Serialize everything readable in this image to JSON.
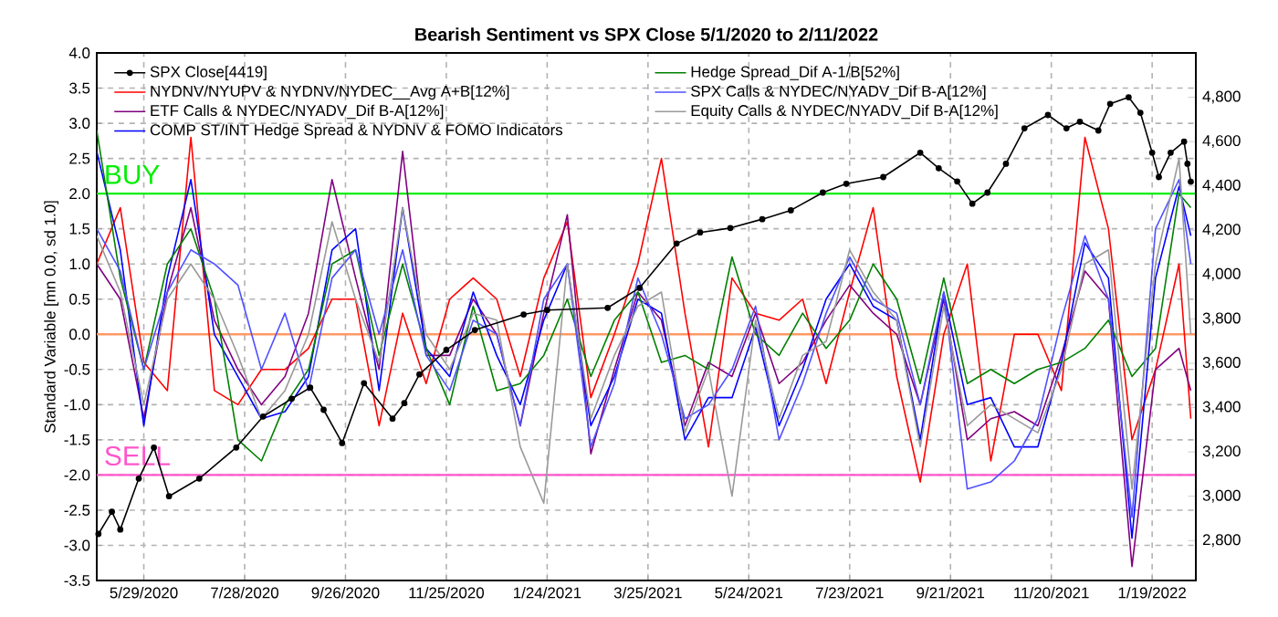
{
  "chart_data": {
    "type": "line",
    "title": "Bearish Sentiment vs SPX Close 5/1/2020 to 2/11/2022",
    "ylabel": "Standard Variable [mn 0.0, sd 1.0]",
    "x": [
      "2020-05-01",
      "2020-05-15",
      "2020-05-29",
      "2020-06-12",
      "2020-06-26",
      "2020-07-10",
      "2020-07-24",
      "2020-08-07",
      "2020-08-21",
      "2020-09-04",
      "2020-09-18",
      "2020-10-02",
      "2020-10-16",
      "2020-10-30",
      "2020-11-13",
      "2020-11-27",
      "2020-12-11",
      "2020-12-25",
      "2021-01-08",
      "2021-01-22",
      "2021-02-05",
      "2021-02-19",
      "2021-03-05",
      "2021-03-19",
      "2021-04-02",
      "2021-04-16",
      "2021-04-30",
      "2021-05-14",
      "2021-05-28",
      "2021-06-11",
      "2021-06-25",
      "2021-07-09",
      "2021-07-23",
      "2021-08-06",
      "2021-08-20",
      "2021-09-03",
      "2021-09-17",
      "2021-10-01",
      "2021-10-15",
      "2021-10-29",
      "2021-11-12",
      "2021-11-26",
      "2021-12-10",
      "2021-12-24",
      "2022-01-07",
      "2022-01-21",
      "2022-02-04",
      "2022-02-11"
    ],
    "xlim": [
      "2020-05-01",
      "2022-02-14"
    ],
    "xticks": [
      {
        "value": "2020-05-29",
        "label": "5/29/2020"
      },
      {
        "value": "2020-07-28",
        "label": "7/28/2020"
      },
      {
        "value": "2020-09-26",
        "label": "9/26/2020"
      },
      {
        "value": "2020-11-25",
        "label": "11/25/2020"
      },
      {
        "value": "2021-01-24",
        "label": "1/24/2021"
      },
      {
        "value": "2021-03-25",
        "label": "3/25/2021"
      },
      {
        "value": "2021-05-24",
        "label": "5/24/2021"
      },
      {
        "value": "2021-07-23",
        "label": "7/23/2021"
      },
      {
        "value": "2021-09-21",
        "label": "9/21/2021"
      },
      {
        "value": "2021-11-20",
        "label": "11/20/2021"
      },
      {
        "value": "2022-01-19",
        "label": "1/19/2022"
      }
    ],
    "ylim": [
      -3.5,
      4.0
    ],
    "yticks": [
      {
        "value": -3.5,
        "label": "-3.5"
      },
      {
        "value": -3,
        "label": "-3.0"
      },
      {
        "value": -2.5,
        "label": "-2.5"
      },
      {
        "value": -2,
        "label": "-2.0"
      },
      {
        "value": -1.5,
        "label": "-1.5"
      },
      {
        "value": -1,
        "label": "-1.0"
      },
      {
        "value": -0.5,
        "label": "-0.5"
      },
      {
        "value": 0,
        "label": "0.0"
      },
      {
        "value": 0.5,
        "label": "0.5"
      },
      {
        "value": 1,
        "label": "1.0"
      },
      {
        "value": 1.5,
        "label": "1.5"
      },
      {
        "value": 2,
        "label": "2.0"
      },
      {
        "value": 2.5,
        "label": "2.5"
      },
      {
        "value": 3,
        "label": "3.0"
      },
      {
        "value": 3.5,
        "label": "3.5"
      },
      {
        "value": 4,
        "label": "4.0"
      }
    ],
    "y2lim": [
      2620,
      5000
    ],
    "y2ticks": [
      {
        "value": 2800,
        "label": "2,800"
      },
      {
        "value": 3000,
        "label": "3,000"
      },
      {
        "value": 3200,
        "label": "3,200"
      },
      {
        "value": 3400,
        "label": "3,400"
      },
      {
        "value": 3600,
        "label": "3,600"
      },
      {
        "value": 3800,
        "label": "3,800"
      },
      {
        "value": 4000,
        "label": "4,000"
      },
      {
        "value": 4200,
        "label": "4,200"
      },
      {
        "value": 4400,
        "label": "4,400"
      },
      {
        "value": 4600,
        "label": "4,600"
      },
      {
        "value": 4800,
        "label": "4,800"
      }
    ],
    "grid": true,
    "legend": "top left",
    "ref_lines": [
      {
        "axis": "y",
        "value": 2.0,
        "label": "BUY",
        "color": "#00ee00"
      },
      {
        "axis": "y",
        "value": -2.0,
        "label": "SELL",
        "color": "#ff55cc"
      },
      {
        "axis": "y",
        "value": 0.0,
        "color": "#ff9966"
      }
    ],
    "series": [
      {
        "name": "SPX Close[4419]",
        "color": "#000000",
        "axis": "y2",
        "marker": "circle",
        "x": [
          "2020-05-02",
          "2020-05-10",
          "2020-05-15",
          "2020-05-26",
          "2020-06-04",
          "2020-06-13",
          "2020-07-01",
          "2020-07-23",
          "2020-08-08",
          "2020-08-25",
          "2020-09-05",
          "2020-09-13",
          "2020-09-24",
          "2020-10-07",
          "2020-10-24",
          "2020-10-31",
          "2020-11-09",
          "2020-11-25",
          "2020-12-12",
          "2021-01-10",
          "2021-01-24",
          "2021-03-01",
          "2021-03-20",
          "2021-04-11",
          "2021-04-25",
          "2021-05-13",
          "2021-06-01",
          "2021-06-18",
          "2021-07-07",
          "2021-07-21",
          "2021-08-12",
          "2021-09-03",
          "2021-09-14",
          "2021-09-25",
          "2021-10-04",
          "2021-10-13",
          "2021-10-24",
          "2021-11-04",
          "2021-11-18",
          "2021-11-29",
          "2021-12-07",
          "2021-12-18",
          "2021-12-25",
          "2022-01-05",
          "2022-01-12",
          "2022-01-19",
          "2022-01-23",
          "2022-01-30",
          "2022-02-07",
          "2022-02-09",
          "2022-02-11"
        ],
        "values": [
          2830,
          2930,
          2850,
          3080,
          3220,
          3000,
          3080,
          3220,
          3360,
          3440,
          3490,
          3390,
          3240,
          3510,
          3350,
          3420,
          3550,
          3660,
          3750,
          3820,
          3840,
          3850,
          3940,
          4140,
          4190,
          4210,
          4250,
          4290,
          4370,
          4410,
          4440,
          4550,
          4480,
          4420,
          4320,
          4370,
          4500,
          4660,
          4720,
          4660,
          4690,
          4650,
          4770,
          4800,
          4730,
          4550,
          4440,
          4550,
          4600,
          4500,
          4419
        ]
      },
      {
        "name": "NYDNV/NYUPV & NYDNV/NYDEC__Avg A+B[12%]",
        "color": "#ff0000",
        "values": [
          1.0,
          1.8,
          -0.4,
          -0.8,
          2.8,
          -0.8,
          -1.0,
          -0.5,
          -0.5,
          -0.2,
          0.5,
          0.5,
          -1.3,
          0.3,
          -0.7,
          0.5,
          0.8,
          0.5,
          -0.6,
          0.8,
          1.6,
          -0.9,
          0.0,
          1.0,
          2.5,
          0.3,
          -1.6,
          0.8,
          0.3,
          0.2,
          0.5,
          -0.7,
          0.6,
          1.8,
          -0.6,
          -2.1,
          0.0,
          1.0,
          -1.8,
          0.0,
          0.0,
          -0.8,
          2.8,
          1.5,
          -1.5,
          -0.5,
          1.0,
          -1.2
        ]
      },
      {
        "name": "ETF Calls & NYDEC/NYADV_Dif B-A[12%]",
        "color": "#800080",
        "values": [
          1.0,
          0.5,
          -1.2,
          0.6,
          1.8,
          0.2,
          -0.5,
          -1.0,
          -0.6,
          0.3,
          2.2,
          0.8,
          -0.5,
          2.6,
          -0.3,
          -0.3,
          0.5,
          0.0,
          -1.3,
          0.3,
          1.7,
          -1.7,
          -0.5,
          0.6,
          0.2,
          -1.3,
          -0.4,
          -0.6,
          0.3,
          -0.7,
          -0.4,
          0.2,
          0.7,
          0.3,
          0.0,
          -1.0,
          0.5,
          -1.5,
          -1.2,
          -1.1,
          -1.3,
          -0.3,
          0.9,
          0.5,
          -3.3,
          -0.5,
          -0.2,
          -0.8
        ]
      },
      {
        "name": "COMP ST/INT Hedge Spread & NYDNV & FOMO Indicators",
        "color": "#0000ff",
        "values": [
          2.6,
          1.2,
          -1.3,
          0.8,
          2.2,
          0.0,
          -0.6,
          -1.2,
          -1.1,
          -0.6,
          1.2,
          1.5,
          -0.8,
          1.8,
          -0.2,
          -0.6,
          0.6,
          -0.3,
          -1.0,
          0.2,
          1.0,
          -1.3,
          -0.6,
          0.5,
          0.3,
          -1.5,
          -0.9,
          -0.9,
          0.1,
          -1.3,
          -0.5,
          0.5,
          1.0,
          0.4,
          0.2,
          -1.5,
          0.6,
          -1.0,
          -0.9,
          -1.6,
          -1.6,
          -0.4,
          1.3,
          0.8,
          -2.9,
          0.8,
          2.1,
          1.4
        ]
      },
      {
        "name": "Hedge Spread_Dif A-1/B[52%]",
        "color": "#008000",
        "values": [
          2.9,
          0.8,
          -0.5,
          1.0,
          1.5,
          0.5,
          -1.5,
          -1.8,
          -1.0,
          -0.5,
          1.0,
          1.2,
          -0.3,
          1.0,
          -0.2,
          -1.0,
          0.4,
          -0.8,
          -0.7,
          -0.3,
          0.5,
          -0.6,
          0.2,
          0.6,
          -0.4,
          -0.3,
          -0.5,
          1.1,
          0.0,
          -0.3,
          0.3,
          -0.2,
          0.2,
          1.0,
          0.5,
          -0.7,
          0.8,
          -0.7,
          -0.5,
          -0.7,
          -0.5,
          -0.4,
          -0.2,
          0.2,
          -0.6,
          -0.2,
          2.0,
          1.8
        ]
      },
      {
        "name": "SPX Calls & NYDEC/NYADV_Dif B-A[12%]",
        "color": "#5050ff",
        "values": [
          1.5,
          0.9,
          -0.5,
          0.6,
          1.2,
          1.0,
          0.7,
          -0.5,
          0.3,
          -0.8,
          0.8,
          1.2,
          0.0,
          1.2,
          -0.3,
          -0.8,
          0.2,
          0.0,
          -1.3,
          0.5,
          1.0,
          -1.6,
          -0.7,
          0.8,
          0.0,
          -1.2,
          -1.0,
          -0.5,
          0.4,
          -1.5,
          -0.7,
          0.3,
          1.1,
          0.5,
          0.3,
          -1.0,
          0.6,
          -2.2,
          -2.1,
          -1.8,
          -1.2,
          0.2,
          1.4,
          0.5,
          -2.6,
          1.5,
          2.2,
          1.0
        ]
      },
      {
        "name": "Equity Calls & NYDEC/NYADV_Dif B-A[12%]",
        "color": "#999999",
        "values": [
          1.4,
          0.6,
          -1.0,
          0.5,
          1.0,
          0.5,
          -0.3,
          -1.2,
          -0.8,
          0.0,
          1.6,
          0.5,
          -0.4,
          1.8,
          0.0,
          -0.5,
          0.3,
          0.2,
          -1.6,
          -2.4,
          1.0,
          -1.2,
          -0.3,
          0.4,
          0.6,
          -1.4,
          -0.5,
          -2.3,
          0.2,
          -1.2,
          -0.3,
          -0.1,
          1.2,
          0.6,
          0.2,
          -1.6,
          0.4,
          -1.3,
          -1.0,
          -1.2,
          -1.4,
          -0.5,
          1.0,
          1.2,
          -2.2,
          1.0,
          2.5,
          0.0
        ]
      }
    ]
  }
}
